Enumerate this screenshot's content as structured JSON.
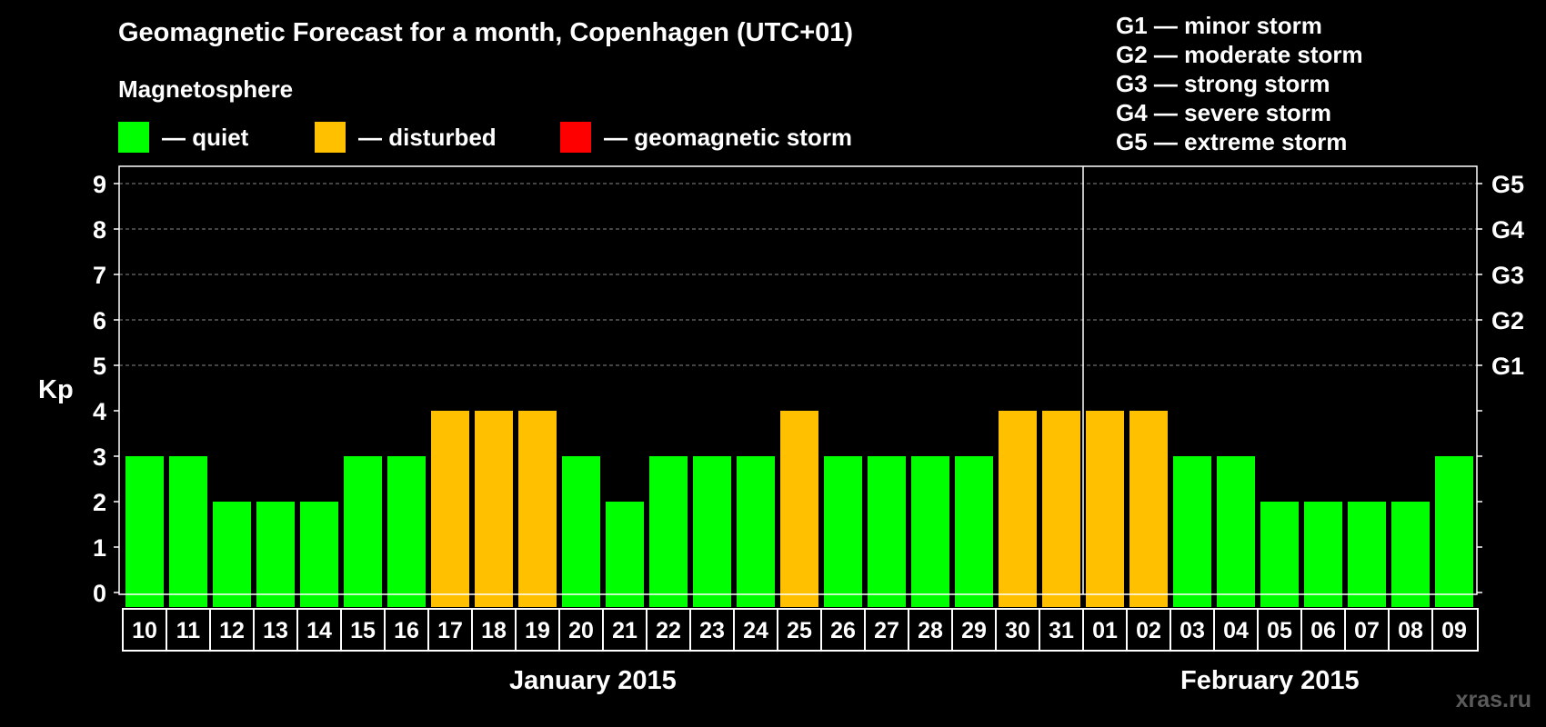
{
  "title": "Geomagnetic Forecast for a month, Copenhagen (UTC+01)",
  "legend": {
    "heading": "Magnetosphere",
    "items": [
      {
        "label": "— quiet",
        "color": "#00ff00"
      },
      {
        "label": "— disturbed",
        "color": "#ffc000"
      },
      {
        "label": "— geomagnetic storm",
        "color": "#ff0000"
      }
    ]
  },
  "storm_levels": [
    {
      "label": "G1 — minor storm",
      "code": "G1",
      "kp": 5
    },
    {
      "label": "G2 — moderate storm",
      "code": "G2",
      "kp": 6
    },
    {
      "label": "G3 — strong storm",
      "code": "G3",
      "kp": 7
    },
    {
      "label": "G4 — severe storm",
      "code": "G4",
      "kp": 8
    },
    {
      "label": "G5 — extreme storm",
      "code": "G5",
      "kp": 9
    }
  ],
  "months": [
    {
      "label": "January 2015"
    },
    {
      "label": "February 2015"
    }
  ],
  "watermark": "xras.ru",
  "chart_data": {
    "type": "bar",
    "ylabel": "Kp",
    "ylim": [
      0,
      9
    ],
    "yticks": [
      0,
      1,
      2,
      3,
      4,
      5,
      6,
      7,
      8,
      9
    ],
    "categories": [
      "10",
      "11",
      "12",
      "13",
      "14",
      "15",
      "16",
      "17",
      "18",
      "19",
      "20",
      "21",
      "22",
      "23",
      "24",
      "25",
      "26",
      "27",
      "28",
      "29",
      "30",
      "31",
      "01",
      "02",
      "03",
      "04",
      "05",
      "06",
      "07",
      "08",
      "09"
    ],
    "values": [
      3,
      3,
      2,
      2,
      2,
      3,
      3,
      4,
      4,
      4,
      3,
      2,
      3,
      3,
      3,
      4,
      3,
      3,
      3,
      3,
      4,
      4,
      4,
      4,
      3,
      3,
      2,
      2,
      2,
      2,
      3
    ],
    "status": [
      "quiet",
      "quiet",
      "quiet",
      "quiet",
      "quiet",
      "quiet",
      "quiet",
      "disturbed",
      "disturbed",
      "disturbed",
      "quiet",
      "quiet",
      "quiet",
      "quiet",
      "quiet",
      "disturbed",
      "quiet",
      "quiet",
      "quiet",
      "quiet",
      "disturbed",
      "disturbed",
      "disturbed",
      "disturbed",
      "quiet",
      "quiet",
      "quiet",
      "quiet",
      "quiet",
      "quiet",
      "quiet"
    ],
    "colors": {
      "quiet": "#00ff00",
      "disturbed": "#ffc000",
      "storm": "#ff0000"
    },
    "month_boundary_after": "31",
    "grid": "dashed at Kp 5–9"
  }
}
